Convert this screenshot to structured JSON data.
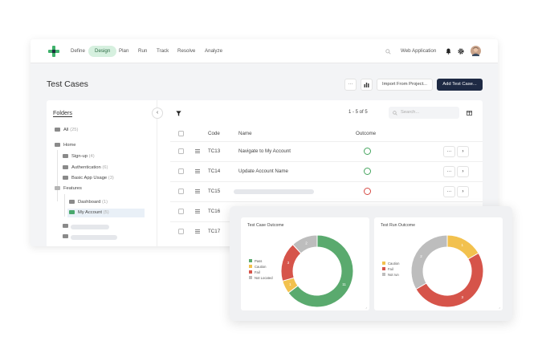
{
  "nav": {
    "items": [
      "Define",
      "Design",
      "Plan",
      "Run",
      "Track",
      "Resolve",
      "Analyze"
    ],
    "active": "Design",
    "project": "Web Application"
  },
  "page": {
    "title": "Test Cases"
  },
  "toolbar": {
    "more": "···",
    "import": "Import From Project...",
    "add": "Add Test Case..."
  },
  "folders": {
    "title": "Folders",
    "collapse": "‹",
    "items": [
      {
        "label": "All",
        "count": "(25)"
      },
      {
        "label": "Home",
        "count": ""
      },
      {
        "label": "Sign-up",
        "count": "(4)"
      },
      {
        "label": "Authentication",
        "count": "(6)"
      },
      {
        "label": "Basic App Usage",
        "count": "(3)"
      },
      {
        "label": "Features",
        "count": ""
      },
      {
        "label": "Dashboard",
        "count": "(1)"
      },
      {
        "label": "My Account",
        "count": "(5)"
      }
    ]
  },
  "table": {
    "pagination": "1 - 5 of 5",
    "search_placeholder": "Search...",
    "headers": {
      "code": "Code",
      "name": "Name",
      "outcome": "Outcome"
    },
    "rows": [
      {
        "code": "TC13",
        "name": "Navigate to My Account",
        "outcome": "pass"
      },
      {
        "code": "TC14",
        "name": "Update Account Name",
        "outcome": "pass"
      },
      {
        "code": "TC15",
        "name": "",
        "outcome": "fail"
      },
      {
        "code": "TC16",
        "name": "",
        "outcome": ""
      },
      {
        "code": "TC17",
        "name": "",
        "outcome": ""
      }
    ],
    "row_more": "···",
    "row_open": "›"
  },
  "colors": {
    "pass": "#5aaa6e",
    "caution": "#f2c14e",
    "fail": "#d6544a",
    "not_run": "#bdbdbd",
    "accent": "#1e2a44",
    "nav_active_bg": "#d6f0df"
  },
  "chart_data": [
    {
      "type": "pie",
      "title": "Test Case Outcome",
      "donut": true,
      "legend": "left",
      "categories": [
        "Pass",
        "Caution",
        "Fail",
        "Not Located"
      ],
      "values": [
        11,
        1,
        3,
        2
      ],
      "colors": [
        "#5aaa6e",
        "#f2c14e",
        "#d6544a",
        "#bdbdbd"
      ]
    },
    {
      "type": "pie",
      "title": "Test Run Outcome",
      "donut": true,
      "legend": "left",
      "categories": [
        "Caution",
        "Fail",
        "Not run"
      ],
      "values": [
        1,
        3,
        2
      ],
      "colors": [
        "#f2c14e",
        "#d6544a",
        "#bdbdbd"
      ]
    }
  ]
}
